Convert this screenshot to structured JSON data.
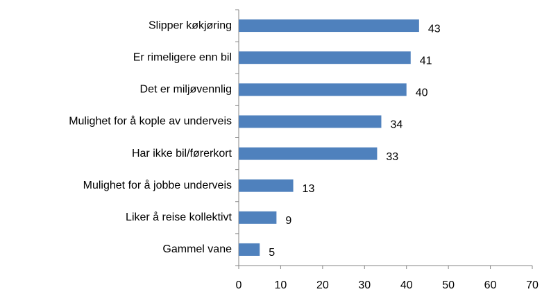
{
  "chart_data": {
    "type": "bar",
    "orientation": "horizontal",
    "categories": [
      "Slipper køkjøring",
      "Er rimeligere enn bil",
      "Det er miljøvennlig",
      "Mulighet for å kople av underveis",
      "Har ikke bil/førerkort",
      "Mulighet for å jobbe underveis",
      "Liker å reise kollektivt",
      "Gammel vane"
    ],
    "values": [
      43,
      41,
      40,
      34,
      33,
      13,
      9,
      5
    ],
    "color": "#4f81bd",
    "xlim": [
      0,
      70
    ],
    "xticks": [
      0,
      10,
      20,
      30,
      40,
      50,
      60,
      70
    ],
    "grid": false
  }
}
